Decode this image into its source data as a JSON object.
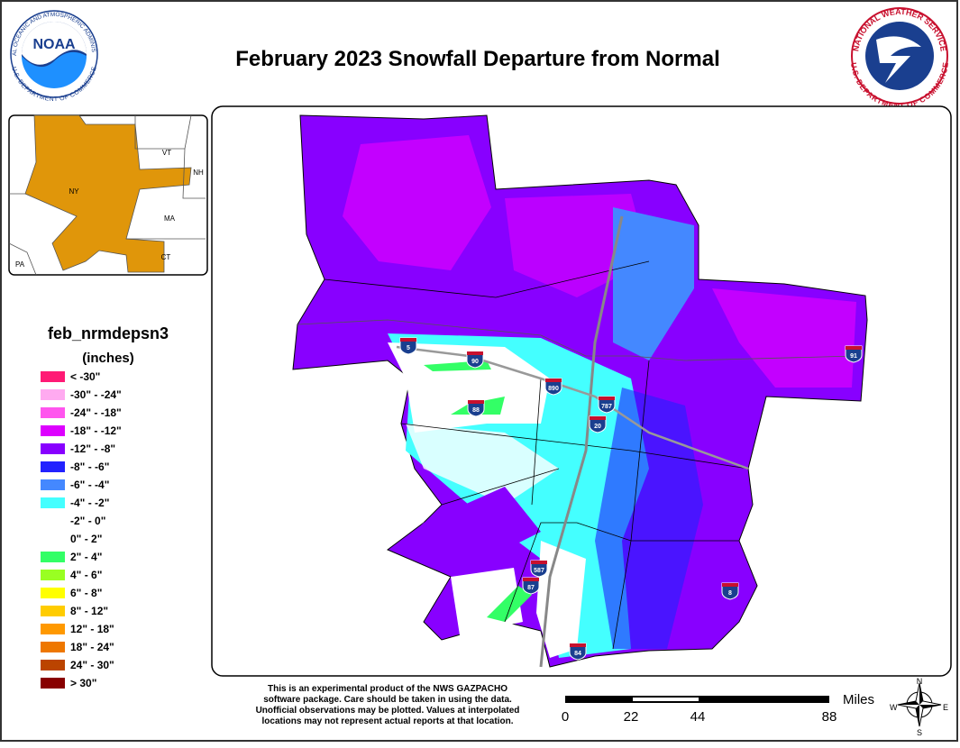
{
  "header": {
    "title": "February 2023 Snowfall Departure from Normal",
    "noaa_logo": {
      "name": "NOAA",
      "ring_top": "NATIONAL OCEANIC AND ATMOSPHERIC ADMINISTRATION",
      "ring_bottom": "U.S. DEPARTMENT OF COMMERCE"
    },
    "nws_logo": {
      "ring_top": "NATIONAL WEATHER SERVICE",
      "ring_bottom": "U.S. DEPARTMENT OF COMMERCE"
    }
  },
  "inset": {
    "labels": [
      "VT",
      "NH",
      "NY",
      "MA",
      "CT",
      "PA"
    ]
  },
  "legend": {
    "title": "feb_nrmdepsn3",
    "units": "(inches)",
    "items": [
      {
        "label": "< -30\"",
        "color": "#ff1a75"
      },
      {
        "label": "-30\" - -24\"",
        "color": "#ffaaf0"
      },
      {
        "label": "-24\" - -18\"",
        "color": "#ff55ee"
      },
      {
        "label": "-18\" - -12\"",
        "color": "#dd00ff"
      },
      {
        "label": "-12\" - -8\"",
        "color": "#8800ff"
      },
      {
        "label": "-8\" - -6\"",
        "color": "#2222ff"
      },
      {
        "label": "-6\" - -4\"",
        "color": "#4488ff"
      },
      {
        "label": "-4\" - -2\"",
        "color": "#44ffff"
      },
      {
        "label": "-2\" - 0\"",
        "color": "#ffffff"
      },
      {
        "label": "0\" - 2\"",
        "color": "#ffffff"
      },
      {
        "label": "2\" - 4\"",
        "color": "#33ff66"
      },
      {
        "label": "4\" - 6\"",
        "color": "#99ff22"
      },
      {
        "label": "6\" - 8\"",
        "color": "#ffff00"
      },
      {
        "label": "8\" - 12\"",
        "color": "#ffcc00"
      },
      {
        "label": "12\" - 18\"",
        "color": "#ff9900"
      },
      {
        "label": "18\" - 24\"",
        "color": "#ee7700"
      },
      {
        "label": "24\" - 30\"",
        "color": "#bb4400"
      },
      {
        "label": "> 30\"",
        "color": "#880000"
      }
    ]
  },
  "map": {
    "interstates": [
      "5",
      "90",
      "890",
      "88",
      "787",
      "20",
      "91",
      "587",
      "87",
      "84",
      "8"
    ]
  },
  "disclaimer": [
    "This is an experimental product of the NWS GAZPACHO",
    "software package. Care should be taken in using the data.",
    "Unofficial observations may be plotted. Values at interpolated",
    "locations may not represent actual reports at that location."
  ],
  "scale_bar": {
    "unit": "Miles",
    "labels": [
      "0",
      "22",
      "44",
      "88"
    ]
  },
  "compass": {
    "n": "N",
    "e": "E",
    "s": "S",
    "w": "W"
  }
}
